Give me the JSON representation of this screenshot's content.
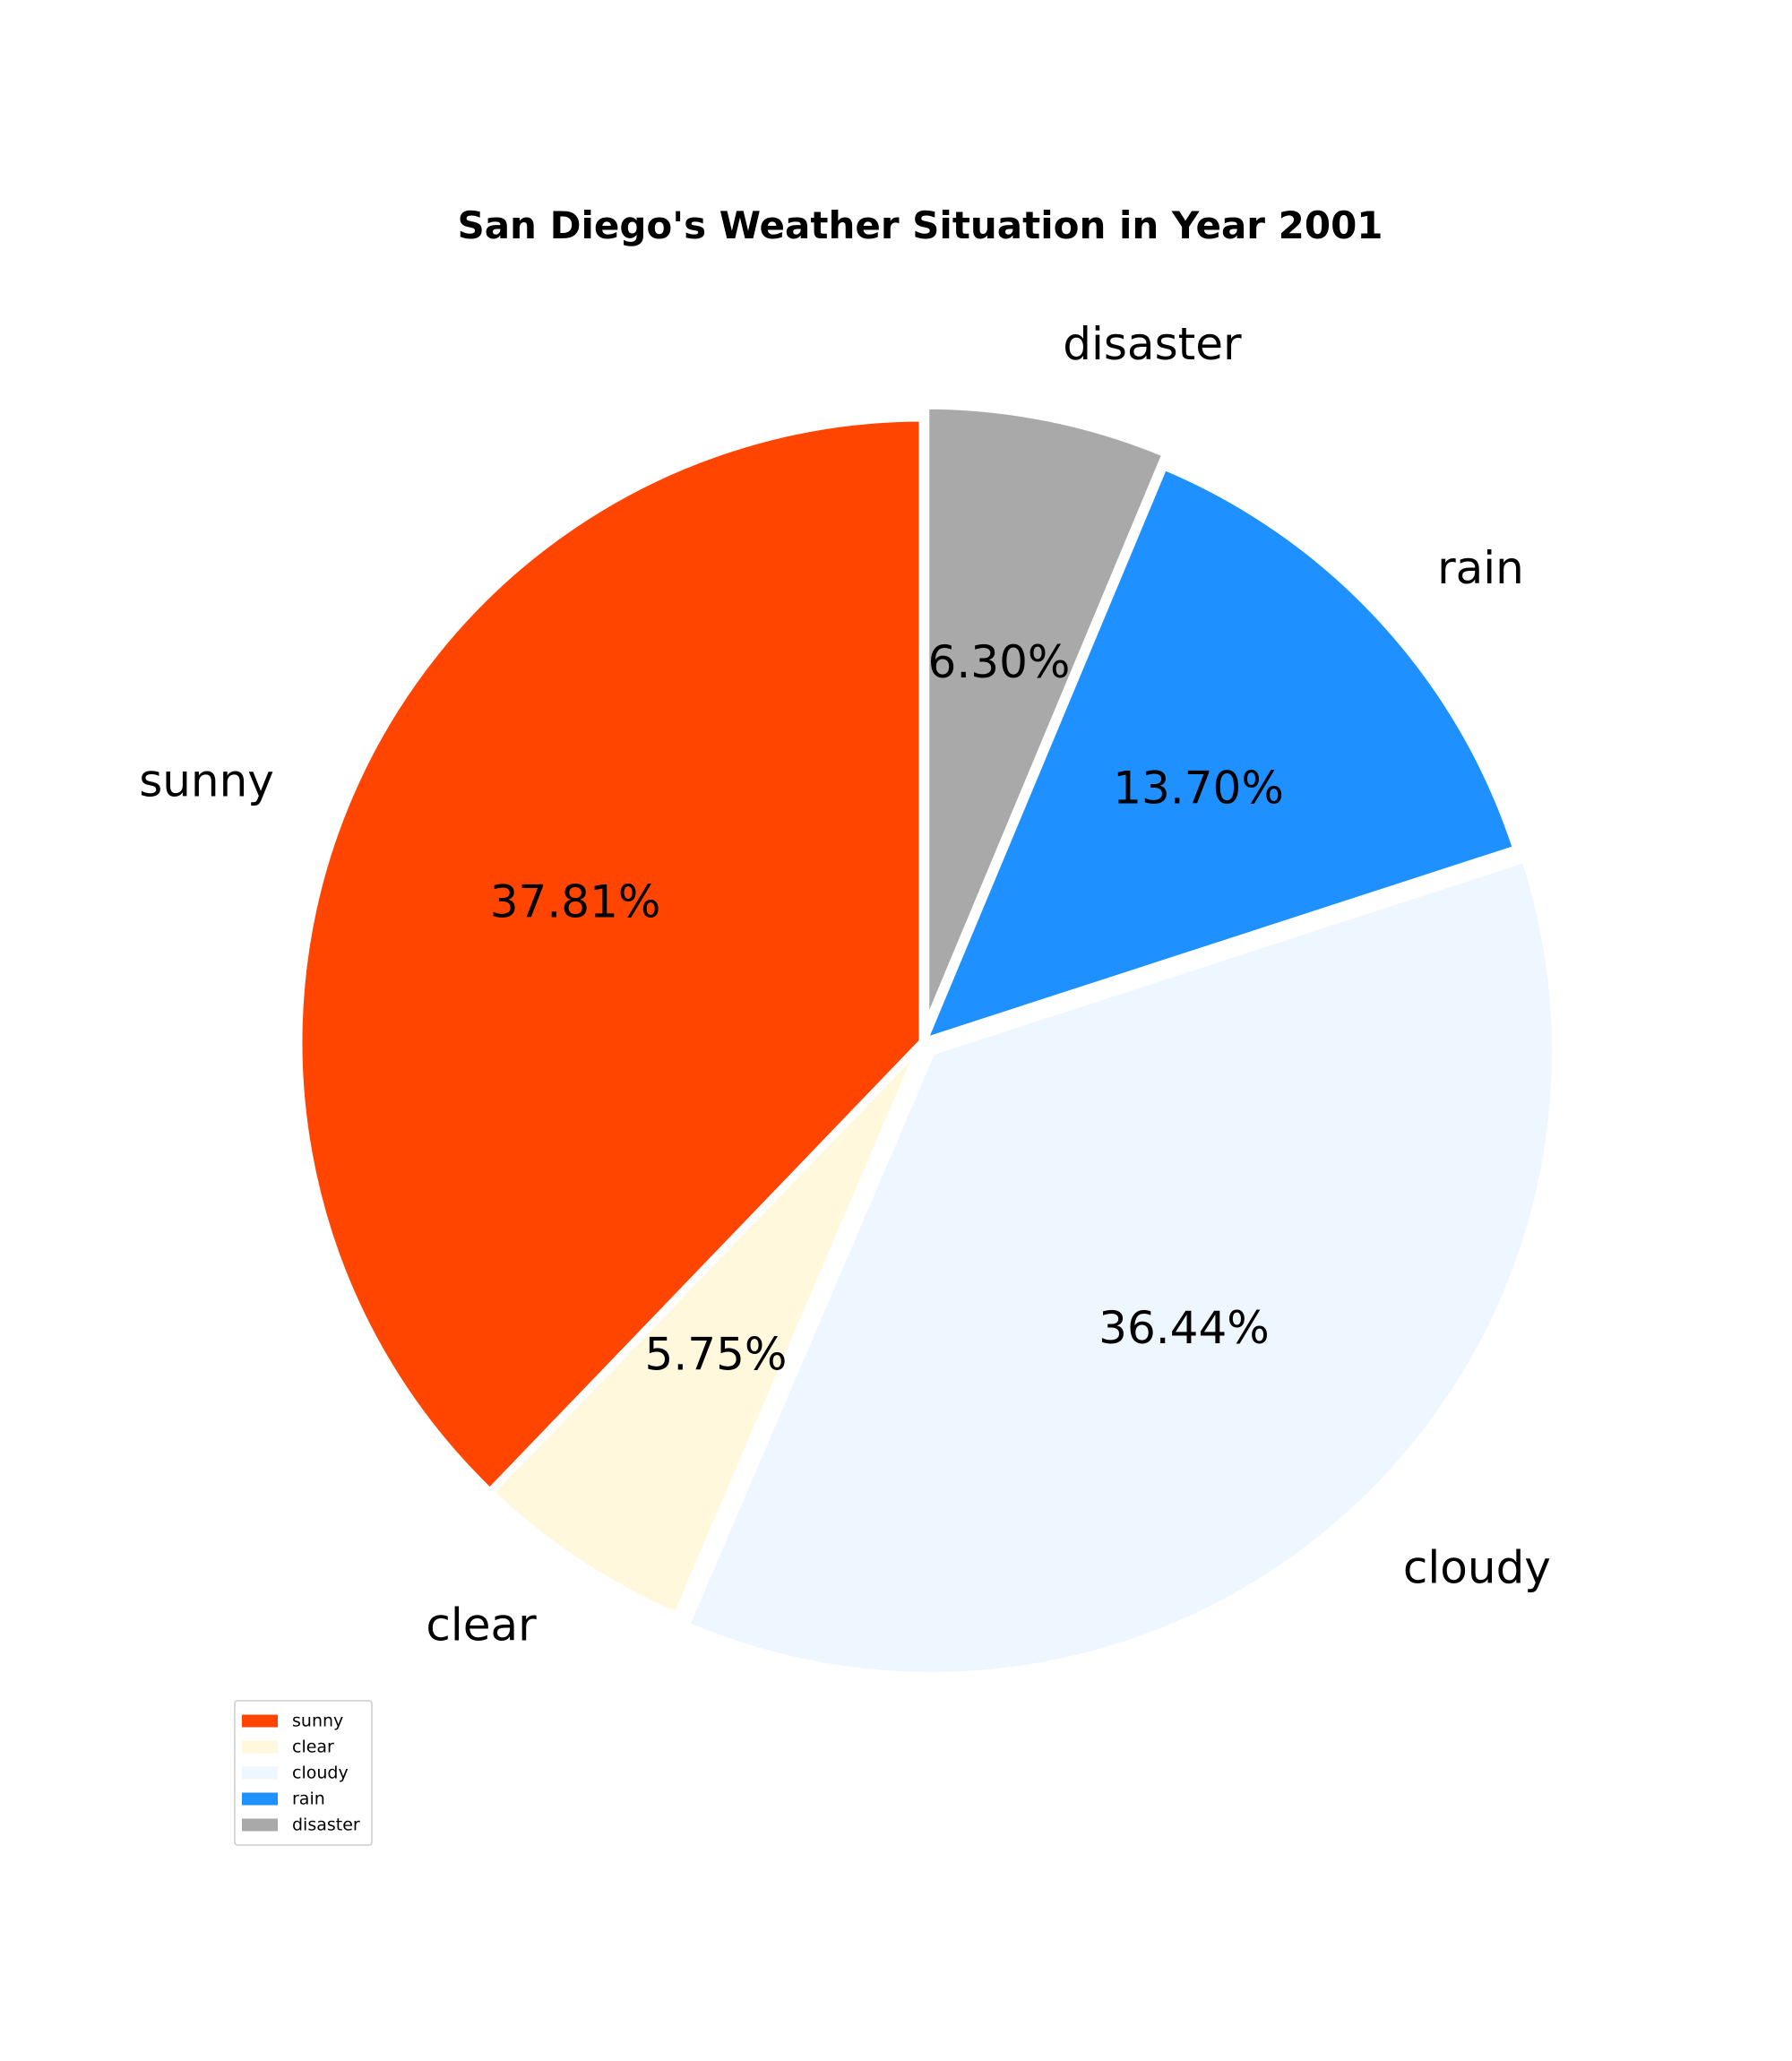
{
  "chart_data": {
    "type": "pie",
    "title": "San Diego's Weather Situation in Year 2001",
    "start_angle_deg": 90,
    "direction": "counterclockwise",
    "legend_position": "lower-left",
    "slices": [
      {
        "label": "sunny",
        "value": 37.81,
        "pct_label": "37.81%",
        "color": "#FF4500",
        "explode": false
      },
      {
        "label": "clear",
        "value": 5.75,
        "pct_label": "5.75%",
        "color": "#FFF8DC",
        "explode": false
      },
      {
        "label": "cloudy",
        "value": 36.44,
        "pct_label": "36.44%",
        "color": "#EEF6FF",
        "explode": true
      },
      {
        "label": "rain",
        "value": 13.7,
        "pct_label": "13.70%",
        "color": "#1E90FF",
        "explode": false
      },
      {
        "label": "disaster",
        "value": 6.3,
        "pct_label": "6.30%",
        "color": "#A9A9A9",
        "explode": true
      }
    ]
  }
}
